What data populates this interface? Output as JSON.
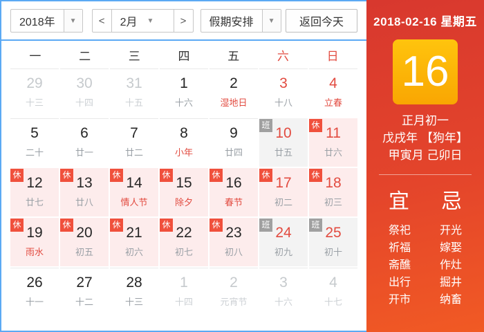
{
  "colors": {
    "accent_blue": "#5ba9f4",
    "red_text": "#e24b40",
    "badge_red": "#f0503c",
    "badge_gray": "#a0a0a0",
    "cell_pink": "#fdecec",
    "cell_gray": "#f3f3f3",
    "sidebar_top": "#d8382e",
    "sidebar_bottom": "#f15a24",
    "daybox_top": "#ffc40d",
    "daybox_bottom": "#f9a602"
  },
  "toolbar": {
    "year": "2018年",
    "prev": "<",
    "month": "2月",
    "next": ">",
    "holiday": "假期安排",
    "today": "返回今天",
    "caret": "▼"
  },
  "weekdays": [
    "一",
    "二",
    "三",
    "四",
    "五",
    "六",
    "日"
  ],
  "calendar": {
    "cells": [
      {
        "day": "29",
        "lunar": "十三",
        "day_color": "dim",
        "lunar_color": "dim",
        "badge": "",
        "bg": ""
      },
      {
        "day": "30",
        "lunar": "十四",
        "day_color": "dim",
        "lunar_color": "dim",
        "badge": "",
        "bg": ""
      },
      {
        "day": "31",
        "lunar": "十五",
        "day_color": "dim",
        "lunar_color": "dim",
        "badge": "",
        "bg": ""
      },
      {
        "day": "1",
        "lunar": "十六",
        "day_color": "dark",
        "lunar_color": "gray",
        "badge": "",
        "bg": ""
      },
      {
        "day": "2",
        "lunar": "湿地日",
        "day_color": "dark",
        "lunar_color": "red",
        "badge": "",
        "bg": ""
      },
      {
        "day": "3",
        "lunar": "十八",
        "day_color": "red",
        "lunar_color": "gray",
        "badge": "",
        "bg": ""
      },
      {
        "day": "4",
        "lunar": "立春",
        "day_color": "red",
        "lunar_color": "red",
        "badge": "",
        "bg": ""
      },
      {
        "day": "5",
        "lunar": "二十",
        "day_color": "dark",
        "lunar_color": "gray",
        "badge": "",
        "bg": ""
      },
      {
        "day": "6",
        "lunar": "廿一",
        "day_color": "dark",
        "lunar_color": "gray",
        "badge": "",
        "bg": ""
      },
      {
        "day": "7",
        "lunar": "廿二",
        "day_color": "dark",
        "lunar_color": "gray",
        "badge": "",
        "bg": ""
      },
      {
        "day": "8",
        "lunar": "小年",
        "day_color": "dark",
        "lunar_color": "red",
        "badge": "",
        "bg": ""
      },
      {
        "day": "9",
        "lunar": "廿四",
        "day_color": "dark",
        "lunar_color": "gray",
        "badge": "",
        "bg": ""
      },
      {
        "day": "10",
        "lunar": "廿五",
        "day_color": "red",
        "lunar_color": "gray",
        "badge": "班",
        "bg": "gray"
      },
      {
        "day": "11",
        "lunar": "廿六",
        "day_color": "red",
        "lunar_color": "gray",
        "badge": "休",
        "bg": "pink"
      },
      {
        "day": "12",
        "lunar": "廿七",
        "day_color": "dark",
        "lunar_color": "gray",
        "badge": "休",
        "bg": "pink"
      },
      {
        "day": "13",
        "lunar": "廿八",
        "day_color": "dark",
        "lunar_color": "gray",
        "badge": "休",
        "bg": "pink"
      },
      {
        "day": "14",
        "lunar": "情人节",
        "day_color": "dark",
        "lunar_color": "red",
        "badge": "休",
        "bg": "pink"
      },
      {
        "day": "15",
        "lunar": "除夕",
        "day_color": "dark",
        "lunar_color": "red",
        "badge": "休",
        "bg": "pink"
      },
      {
        "day": "16",
        "lunar": "春节",
        "day_color": "dark",
        "lunar_color": "red",
        "badge": "休",
        "bg": "pink"
      },
      {
        "day": "17",
        "lunar": "初二",
        "day_color": "red",
        "lunar_color": "gray",
        "badge": "休",
        "bg": "pink"
      },
      {
        "day": "18",
        "lunar": "初三",
        "day_color": "red",
        "lunar_color": "gray",
        "badge": "休",
        "bg": "pink"
      },
      {
        "day": "19",
        "lunar": "雨水",
        "day_color": "dark",
        "lunar_color": "red",
        "badge": "休",
        "bg": "pink"
      },
      {
        "day": "20",
        "lunar": "初五",
        "day_color": "dark",
        "lunar_color": "gray",
        "badge": "休",
        "bg": "pink"
      },
      {
        "day": "21",
        "lunar": "初六",
        "day_color": "dark",
        "lunar_color": "gray",
        "badge": "休",
        "bg": "pink"
      },
      {
        "day": "22",
        "lunar": "初七",
        "day_color": "dark",
        "lunar_color": "gray",
        "badge": "休",
        "bg": "pink"
      },
      {
        "day": "23",
        "lunar": "初八",
        "day_color": "dark",
        "lunar_color": "gray",
        "badge": "休",
        "bg": "pink"
      },
      {
        "day": "24",
        "lunar": "初九",
        "day_color": "red",
        "lunar_color": "gray",
        "badge": "班",
        "bg": "gray"
      },
      {
        "day": "25",
        "lunar": "初十",
        "day_color": "red",
        "lunar_color": "gray",
        "badge": "班",
        "bg": "gray"
      },
      {
        "day": "26",
        "lunar": "十一",
        "day_color": "dark",
        "lunar_color": "gray",
        "badge": "",
        "bg": ""
      },
      {
        "day": "27",
        "lunar": "十二",
        "day_color": "dark",
        "lunar_color": "gray",
        "badge": "",
        "bg": ""
      },
      {
        "day": "28",
        "lunar": "十三",
        "day_color": "dark",
        "lunar_color": "gray",
        "badge": "",
        "bg": ""
      },
      {
        "day": "1",
        "lunar": "十四",
        "day_color": "dim",
        "lunar_color": "dim",
        "badge": "",
        "bg": ""
      },
      {
        "day": "2",
        "lunar": "元宵节",
        "day_color": "dim",
        "lunar_color": "dim",
        "badge": "",
        "bg": ""
      },
      {
        "day": "3",
        "lunar": "十六",
        "day_color": "dim",
        "lunar_color": "dim",
        "badge": "",
        "bg": ""
      },
      {
        "day": "4",
        "lunar": "十七",
        "day_color": "dim",
        "lunar_color": "dim",
        "badge": "",
        "bg": ""
      }
    ]
  },
  "sidebar": {
    "date": "2018-02-16 星期五",
    "big_day": "16",
    "lunar_date": "正月初一",
    "ganzhi_year": "戊戌年 【狗年】",
    "ganzhi_month_day": "甲寅月 己卯日",
    "yi_title": "宜",
    "ji_title": "忌",
    "yi_items": [
      "祭祀",
      "祈福",
      "斋醮",
      "出行",
      "开市"
    ],
    "ji_items": [
      "开光",
      "嫁娶",
      "作灶",
      "掘井",
      "纳畜"
    ]
  }
}
